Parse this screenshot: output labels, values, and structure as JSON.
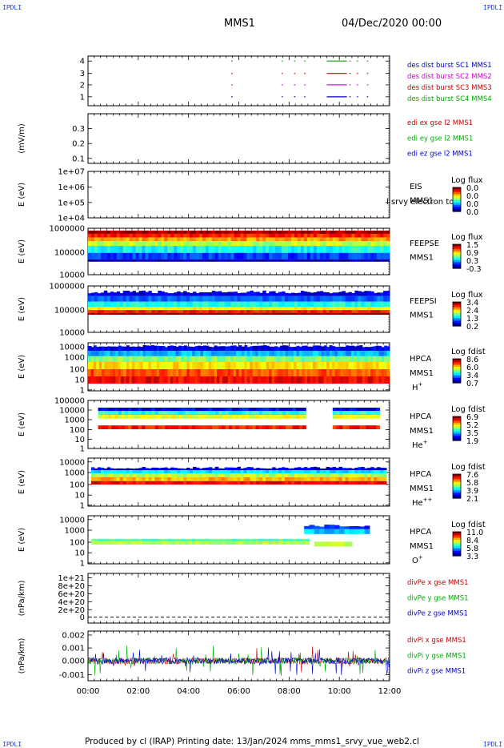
{
  "corners": {
    "tl": "IPDLI",
    "tr": "IPDLI",
    "bl": "IPDLI",
    "br": "IPDLI"
  },
  "header": {
    "spacecraft": "MMS1",
    "datetime": "04/Dec/2020 00:00"
  },
  "footer": "Produced by cl (IRAP)   Printing date: 13/Jan/2024   mms_mms1_srvy_vue_web2.cl",
  "chart_data": {
    "type": "multi-panel time series",
    "x_ticks": [
      "00:00",
      "02:00",
      "04:00",
      "06:00",
      "08:00",
      "10:00",
      "12:00"
    ],
    "xlim_hours": [
      0,
      12
    ],
    "panels": [
      {
        "id": "burst",
        "type": "scatter",
        "y_ticks": [
          "1",
          "2",
          "3",
          "4"
        ],
        "ylim": [
          0.6,
          4.5
        ],
        "legend": [
          {
            "text": "des dist burst SC1 MMS1",
            "color": "#0000cc"
          },
          {
            "text": "des dist burst SC2 MMS2",
            "color": "#cc00cc"
          },
          {
            "text": "des dist burst SC3 MMS3",
            "color": "#cc0000"
          },
          {
            "text": "des dist burst SC4 MMS4",
            "color": "#00aa00"
          }
        ],
        "intervals_hours": [
          [
            5.7,
            5.75
          ],
          [
            7.7,
            7.75
          ],
          [
            8.2,
            8.25
          ],
          [
            8.6,
            8.65
          ],
          [
            9.5,
            10.3
          ],
          [
            10.4,
            10.45
          ],
          [
            10.7,
            10.75
          ],
          [
            11.1,
            11.15
          ]
        ]
      },
      {
        "id": "edi",
        "type": "line",
        "ylabel": "(mV/m)",
        "y_ticks": [
          "0.1",
          "0.2",
          "0.3"
        ],
        "legend": [
          {
            "text": "edi ex gse l2 MMS1",
            "color": "#cc0000"
          },
          {
            "text": "edi ey gse l2 MMS1",
            "color": "#00aa00"
          },
          {
            "text": "edi ez gse l2 MMS1",
            "color": "#0000cc"
          }
        ]
      },
      {
        "id": "eis",
        "type": "heatmap",
        "ylabel": "E (eV)",
        "y_ticks": [
          "1e+04",
          "1e+05",
          "1e+06",
          "1e+07"
        ],
        "label": "EIS",
        "sub": "MMS1",
        "overlay": "l srvy electron to",
        "cbar_title": "Log flux",
        "cbar_ticks": [
          "0.0",
          "0.0",
          "0.0",
          "0.0"
        ]
      },
      {
        "id": "feepse",
        "type": "heatmap",
        "ylabel": "E (eV)",
        "y_ticks": [
          "10000",
          "100000",
          "1000000"
        ],
        "label": "FEEPSE",
        "sub": "MMS1",
        "cbar_title": "Log flux",
        "cbar_ticks": [
          "1.5",
          "0.9",
          "0.3",
          "-0.3"
        ]
      },
      {
        "id": "feepsi",
        "type": "heatmap",
        "ylabel": "E (eV)",
        "y_ticks": [
          "10000",
          "100000",
          "1000000"
        ],
        "label": "FEEPSI",
        "sub": "MMS1",
        "cbar_title": "Log flux",
        "cbar_ticks": [
          "3.4",
          "2.4",
          "1.3",
          "0.2"
        ]
      },
      {
        "id": "hpca_h",
        "type": "heatmap",
        "ylabel": "E (eV)",
        "y_ticks": [
          "1",
          "10",
          "100",
          "1000",
          "10000"
        ],
        "label": "HPCA",
        "sub": "MMS1",
        "species": "H",
        "species_sup": "+",
        "cbar_title": "Log fdist",
        "cbar_ticks": [
          "8.6",
          "6.0",
          "3.4",
          "0.7"
        ]
      },
      {
        "id": "hpca_he",
        "type": "heatmap",
        "ylabel": "E (eV)",
        "y_ticks": [
          "1",
          "10",
          "100",
          "1000",
          "10000",
          "100000"
        ],
        "label": "HPCA",
        "sub": "MMS1",
        "species": "He",
        "species_sup": "+",
        "cbar_title": "Log fdist",
        "cbar_ticks": [
          "6.9",
          "5.2",
          "3.5",
          "1.9"
        ]
      },
      {
        "id": "hpca_he2",
        "type": "heatmap",
        "ylabel": "E (eV)",
        "y_ticks": [
          "1",
          "10",
          "100",
          "1000",
          "10000"
        ],
        "label": "HPCA",
        "sub": "MMS1",
        "species": "He",
        "species_sup": "++",
        "cbar_title": "Log fdist",
        "cbar_ticks": [
          "7.6",
          "5.8",
          "3.9",
          "2.1"
        ]
      },
      {
        "id": "hpca_o",
        "type": "heatmap",
        "ylabel": "E (eV)",
        "y_ticks": [
          "1",
          "10",
          "100",
          "1000",
          "10000"
        ],
        "label": "HPCA",
        "sub": "MMS1",
        "species": "O",
        "species_sup": "+",
        "cbar_title": "Log fdist",
        "cbar_ticks": [
          "11.0",
          "8.4",
          "5.8",
          "3.3"
        ]
      },
      {
        "id": "divpe",
        "type": "line",
        "ylabel": "(nPa/km)",
        "y_ticks": [
          "0",
          "2e+20",
          "4e+20",
          "6e+20",
          "8e+20",
          "1e+21"
        ],
        "legend": [
          {
            "text": "divPe x gse MMS1",
            "color": "#cc0000"
          },
          {
            "text": "divPe y gse MMS1",
            "color": "#00aa00"
          },
          {
            "text": "divPe z gse MMS1",
            "color": "#0000cc"
          }
        ]
      },
      {
        "id": "divpi",
        "type": "line",
        "ylabel": "(nPa/km)",
        "y_ticks": [
          "-0.001",
          "0.000",
          "0.001",
          "0.002"
        ],
        "ylim": [
          -0.0015,
          0.0022
        ],
        "legend": [
          {
            "text": "divPi x gse MMS1",
            "color": "#cc0000"
          },
          {
            "text": "divPi y gse MMS1",
            "color": "#00aa00"
          },
          {
            "text": "divPi z gse MMS1",
            "color": "#0000cc"
          }
        ]
      }
    ]
  }
}
